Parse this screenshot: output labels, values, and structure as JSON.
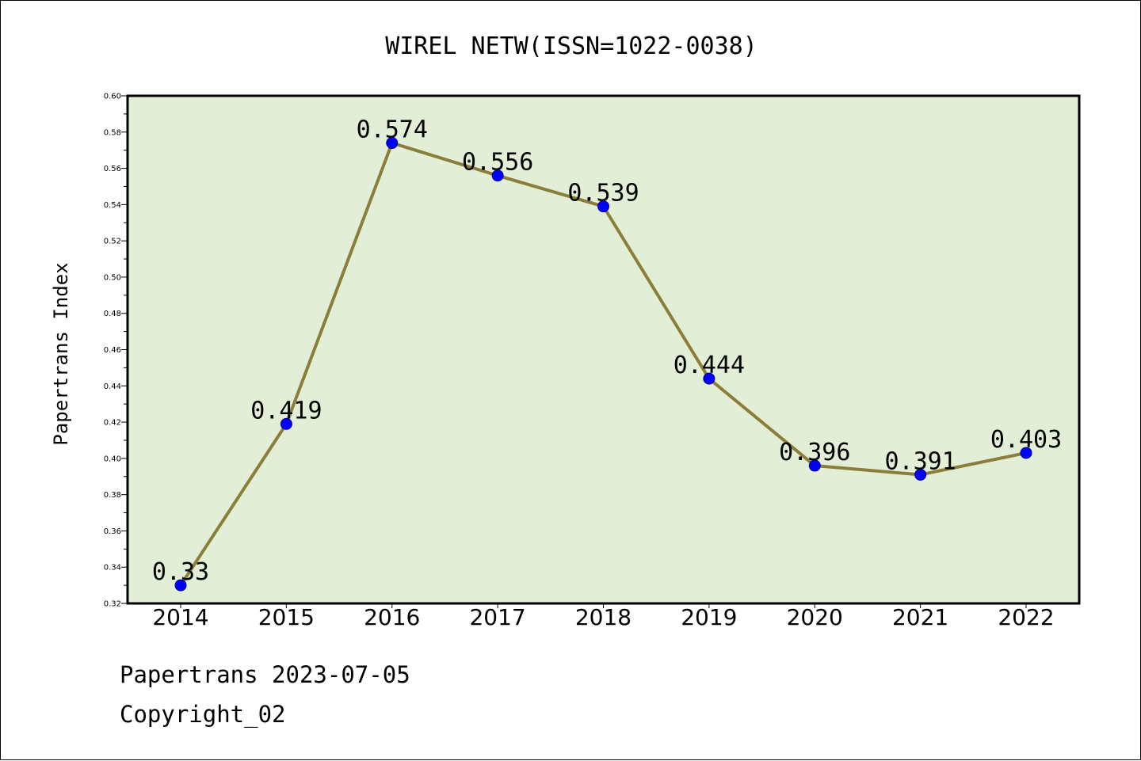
{
  "chart_data": {
    "type": "line",
    "title": "WIREL NETW(ISSN=1022-0038)",
    "xlabel": "",
    "ylabel": "Papertrans Index",
    "categories": [
      "2014",
      "2015",
      "2016",
      "2017",
      "2018",
      "2019",
      "2020",
      "2021",
      "2022"
    ],
    "series": [
      {
        "values": [
          0.33,
          0.419,
          0.574,
          0.556,
          0.539,
          0.444,
          0.396,
          0.391,
          0.403
        ],
        "labels": [
          "0.33",
          "0.419",
          "0.574",
          "0.556",
          "0.539",
          "0.444",
          "0.396",
          "0.391",
          "0.403"
        ]
      }
    ],
    "ylim": [
      0.32,
      0.6
    ],
    "yticks": [
      "0.32",
      "0.34",
      "0.36",
      "0.38",
      "0.40",
      "0.42",
      "0.44",
      "0.46",
      "0.48",
      "0.50",
      "0.52",
      "0.54",
      "0.56",
      "0.58",
      "0.60"
    ],
    "grid": false,
    "legend": "none",
    "colors": {
      "plot_background": "#e2efd6",
      "line": "#8b7d3a",
      "marker_fill": "#0000ff",
      "marker_edge": "#000080",
      "axes": "#000000"
    }
  },
  "footer": {
    "date_line": "Papertrans 2023-07-05",
    "copyright": "Copyright_02"
  }
}
